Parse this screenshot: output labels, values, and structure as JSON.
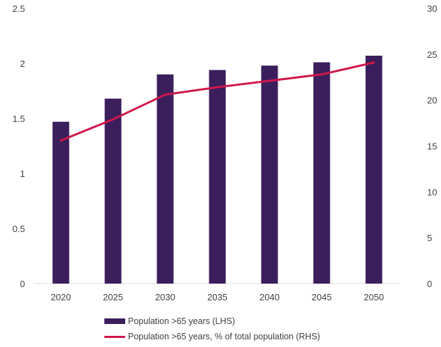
{
  "chart_data": {
    "type": "bar",
    "categories": [
      "2020",
      "2025",
      "2030",
      "2035",
      "2040",
      "2045",
      "2050"
    ],
    "series": [
      {
        "name": "Population >65 years (LHS)",
        "type": "bar",
        "axis": "left",
        "color": "#3b1e5c",
        "values": [
          1.47,
          1.68,
          1.9,
          1.94,
          1.98,
          2.01,
          2.07
        ]
      },
      {
        "name": "Population >65 years, % of total population (RHS)",
        "type": "line",
        "axis": "right",
        "color": "#d0164a",
        "values": [
          15.6,
          17.9,
          20.6,
          21.4,
          22.1,
          22.8,
          24.1
        ]
      }
    ],
    "y_left": {
      "min": 0,
      "max": 2.5,
      "ticks": [
        "0",
        "0.5",
        "1",
        "1.5",
        "2",
        "2.5"
      ]
    },
    "y_right": {
      "min": 0,
      "max": 30,
      "ticks": [
        "0",
        "5",
        "10",
        "15",
        "20",
        "25",
        "30"
      ]
    },
    "grid": false,
    "legend_position": "bottom"
  }
}
